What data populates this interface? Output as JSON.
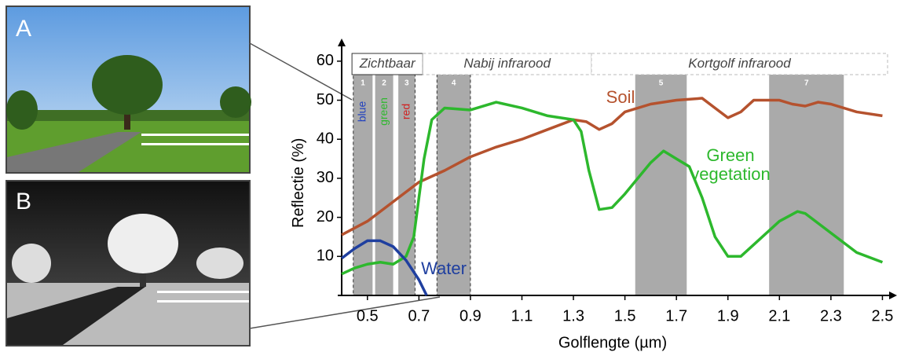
{
  "photos": {
    "a": "A",
    "b": "B"
  },
  "chart_data": {
    "type": "line",
    "xlabel": "Golflengte (µm)",
    "ylabel": "Reflectie (%)",
    "xlim": [
      0.4,
      2.52
    ],
    "ylim": [
      0,
      65
    ],
    "xticks": [
      0.5,
      0.7,
      0.9,
      1.1,
      1.3,
      1.5,
      1.7,
      1.9,
      2.1,
      2.3,
      2.5
    ],
    "yticks": [
      10,
      20,
      30,
      40,
      50,
      60
    ],
    "regions": [
      {
        "label": "Zichtbaar",
        "range": [
          0.44,
          0.715
        ]
      },
      {
        "label": "Nabij infrarood",
        "range": [
          0.715,
          1.37
        ]
      },
      {
        "label": "Kortgolf infrarood",
        "range": [
          1.37,
          2.52
        ]
      }
    ],
    "bands": [
      {
        "name": "1",
        "range": [
          0.445,
          0.52
        ],
        "label": "blue",
        "label_color": "#1f3fbf"
      },
      {
        "name": "2",
        "range": [
          0.53,
          0.6
        ],
        "label": "green",
        "label_color": "#2db82d"
      },
      {
        "name": "3",
        "range": [
          0.62,
          0.685
        ],
        "label": "red",
        "label_color": "#d02020"
      },
      {
        "name": "4",
        "range": [
          0.77,
          0.9
        ]
      },
      {
        "name": "5",
        "range": [
          1.54,
          1.74
        ]
      },
      {
        "name": "7",
        "range": [
          2.06,
          2.35
        ]
      }
    ],
    "band_color": "#aaaaaa",
    "series": [
      {
        "name": "Soil",
        "color": "#b5522e",
        "x": [
          0.4,
          0.5,
          0.6,
          0.7,
          0.8,
          0.9,
          1.0,
          1.1,
          1.2,
          1.3,
          1.35,
          1.4,
          1.45,
          1.5,
          1.6,
          1.7,
          1.8,
          1.85,
          1.9,
          1.95,
          2.0,
          2.1,
          2.15,
          2.2,
          2.25,
          2.3,
          2.4,
          2.5
        ],
        "values": [
          15.5,
          19,
          24,
          29,
          32,
          35.5,
          38,
          40,
          42.5,
          45,
          44.5,
          42.5,
          44,
          47,
          49,
          50,
          50.5,
          48,
          45.5,
          47,
          50,
          50,
          49,
          48.5,
          49.5,
          49,
          47,
          46
        ]
      },
      {
        "name": "Green vegetation",
        "color": "#2db82d",
        "x": [
          0.4,
          0.45,
          0.5,
          0.55,
          0.6,
          0.65,
          0.68,
          0.7,
          0.72,
          0.75,
          0.8,
          0.9,
          1.0,
          1.1,
          1.2,
          1.3,
          1.33,
          1.36,
          1.4,
          1.45,
          1.5,
          1.6,
          1.65,
          1.7,
          1.75,
          1.8,
          1.85,
          1.9,
          1.95,
          2.0,
          2.1,
          2.17,
          2.2,
          2.3,
          2.4,
          2.5
        ],
        "values": [
          5.5,
          7,
          8,
          8.5,
          8,
          10,
          15,
          25,
          35,
          45,
          48,
          47.5,
          49.5,
          48,
          46,
          45,
          42,
          32,
          22,
          22.5,
          26,
          34,
          37,
          35,
          33,
          25,
          15,
          10,
          10,
          13,
          19,
          21.5,
          21,
          16,
          11,
          8.5
        ]
      },
      {
        "name": "Water",
        "color": "#1f3f9f",
        "x": [
          0.4,
          0.45,
          0.5,
          0.55,
          0.6,
          0.65,
          0.7,
          0.73
        ],
        "values": [
          9.5,
          12,
          14,
          14,
          12.5,
          9,
          4,
          0
        ]
      }
    ]
  }
}
